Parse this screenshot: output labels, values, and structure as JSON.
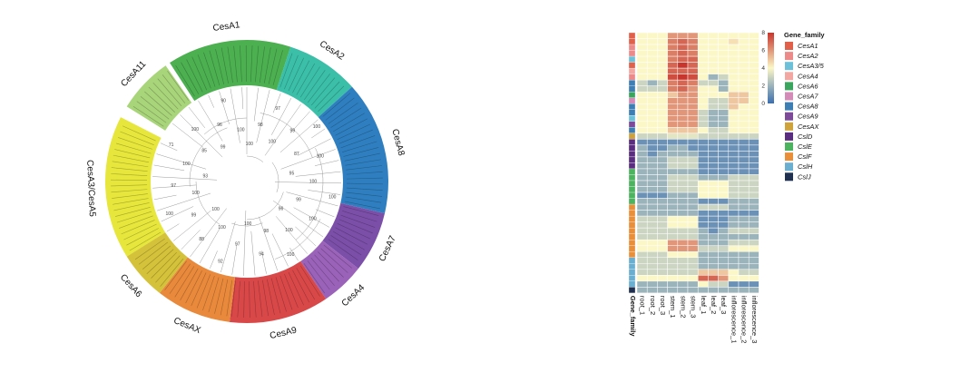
{
  "colors": {
    "CesA1": "#4caf50",
    "CesA2": "#3bbfa8",
    "CesA8": "#2f7fc0",
    "CesA7": "#7b4fa8",
    "CesA4": "#9a62b8",
    "CesA9": "#d94848",
    "CesAX": "#e8893c",
    "CesA6": "#d4c23a",
    "CesA3/CesA5": "#e6e63c",
    "CesA11": "#a8d47a"
  },
  "chart_data": [
    {
      "type": "phylogenetic-tree",
      "clades": [
        {
          "name": "CesA1",
          "start_deg": 327,
          "end_deg": 18
        },
        {
          "name": "CesA2",
          "start_deg": 18,
          "end_deg": 48
        },
        {
          "name": "CesA8",
          "start_deg": 48,
          "end_deg": 103
        },
        {
          "name": "CesA7",
          "start_deg": 103,
          "end_deg": 128
        },
        {
          "name": "CesA4",
          "start_deg": 128,
          "end_deg": 146
        },
        {
          "name": "CesA9",
          "start_deg": 146,
          "end_deg": 187
        },
        {
          "name": "CesAX",
          "start_deg": 187,
          "end_deg": 218
        },
        {
          "name": "CesA6",
          "start_deg": 218,
          "end_deg": 238
        },
        {
          "name": "CesA3/CesA5",
          "start_deg": 238,
          "end_deg": 297
        },
        {
          "name": "CesA11",
          "start_deg": 302,
          "end_deg": 325
        }
      ],
      "label_clades": [
        "CesA1",
        "CesA2",
        "CesA8",
        "CesA7",
        "CesA4",
        "CesA9",
        "CesAX",
        "CesA6",
        "CesA3/CesA5",
        "CesA11"
      ],
      "bootstrap_values": [
        "100",
        "98",
        "97",
        "100",
        "99",
        "100",
        "87",
        "100",
        "95",
        "100",
        "100",
        "99",
        "100",
        "96",
        "100",
        "100",
        "98",
        "94",
        "100",
        "97",
        "92",
        "100",
        "88",
        "100",
        "99",
        "100",
        "100",
        "97",
        "93",
        "100",
        "71",
        "85",
        "100",
        "99",
        "96",
        "90",
        "100"
      ]
    },
    {
      "type": "heatmap",
      "columns": [
        "root_1",
        "root_2",
        "root_3",
        "stem_1",
        "stem_2",
        "stem_3",
        "leaf_1",
        "leaf_2",
        "leaf_3",
        "inflorescence_1",
        "inflorescence_2",
        "inflorescence_3"
      ],
      "annotation_column_label": "Gene_family",
      "color_scale": {
        "min": 0,
        "max": 8,
        "ticks": [
          "8",
          "6",
          "4",
          "2",
          "0"
        ],
        "low": "#3b6fb0",
        "mid": "#fbf7c6",
        "high": "#c8352c"
      },
      "legend": {
        "title": "Gene_family",
        "entries": [
          {
            "label": "CesA1",
            "color": "#e0604a"
          },
          {
            "label": "CesA2",
            "color": "#ec8a8a"
          },
          {
            "label": "CesA3/5",
            "color": "#6cc0d8"
          },
          {
            "label": "CesA4",
            "color": "#f2a7a2"
          },
          {
            "label": "CesA6",
            "color": "#3aa55c"
          },
          {
            "label": "CesA7",
            "color": "#d48bb8"
          },
          {
            "label": "CesA8",
            "color": "#3d7fb5"
          },
          {
            "label": "CesA9",
            "color": "#7d4a9a"
          },
          {
            "label": "CesAX",
            "color": "#cfa23a"
          },
          {
            "label": "CslD",
            "color": "#5a2d80"
          },
          {
            "label": "CslE",
            "color": "#4cb35e"
          },
          {
            "label": "CslF",
            "color": "#e98f3a"
          },
          {
            "label": "CslH",
            "color": "#6aaed0"
          },
          {
            "label": "CslJ",
            "color": "#1f3050"
          }
        ]
      },
      "row_families": [
        "CesA1",
        "CesA1",
        "CesA2",
        "CesA2",
        "CesA3/5",
        "CesA1",
        "CesA4",
        "CesA2",
        "CesA8",
        "CesA8",
        "CesA6",
        "CesA7",
        "CesA8",
        "CesA8",
        "CesA3/5",
        "CesA9",
        "CesA8",
        "CesAX",
        "CslD",
        "CslD",
        "CslD",
        "CslD",
        "CslD",
        "CslE",
        "CslE",
        "CslE",
        "CslE",
        "CslE",
        "CslE",
        "CslF",
        "CslF",
        "CslF",
        "CslF",
        "CslF",
        "CslF",
        "CslF",
        "CslF",
        "CslF",
        "CslH",
        "CslH",
        "CslH",
        "CslH",
        "CslH",
        "CslJ"
      ],
      "values": [
        [
          4,
          4,
          4,
          6,
          6,
          6,
          4,
          4,
          4,
          4,
          4,
          4
        ],
        [
          4,
          4,
          4,
          6.5,
          7,
          6.5,
          4,
          4,
          4,
          4.5,
          4,
          4
        ],
        [
          4,
          4,
          4,
          6.5,
          7,
          6.5,
          4,
          4,
          4,
          4,
          4,
          4
        ],
        [
          4,
          4,
          4,
          6.5,
          7,
          6.5,
          4,
          4,
          4,
          4,
          4,
          4
        ],
        [
          4,
          4,
          4,
          6.5,
          7,
          7,
          4,
          4,
          4,
          4,
          4,
          4
        ],
        [
          4,
          4,
          4,
          7,
          8,
          7,
          4,
          4,
          4,
          4,
          4,
          4
        ],
        [
          4,
          4,
          4,
          7,
          7,
          7,
          4,
          4,
          4,
          4,
          4,
          4
        ],
        [
          4,
          4,
          4,
          7.5,
          8,
          7.5,
          4,
          2,
          3,
          4,
          4,
          4
        ],
        [
          3,
          2,
          3,
          6.5,
          7,
          6.5,
          3,
          3,
          2,
          4,
          4,
          4
        ],
        [
          3,
          3,
          3,
          6.5,
          7,
          6,
          4,
          4,
          2,
          4,
          4,
          4
        ],
        [
          4,
          4,
          4,
          5,
          6,
          6,
          4,
          4,
          4,
          5,
          5,
          4
        ],
        [
          4,
          4,
          4,
          6,
          6,
          6,
          4,
          3,
          3,
          5,
          5,
          4
        ],
        [
          4,
          4,
          4,
          6,
          6,
          6,
          4,
          3,
          3,
          5,
          4,
          4
        ],
        [
          4,
          4,
          4,
          6,
          6,
          6,
          3,
          2,
          2,
          4,
          4,
          4
        ],
        [
          4,
          4,
          4,
          6,
          6,
          6,
          3,
          2,
          2,
          4,
          4,
          4
        ],
        [
          4,
          4,
          4,
          6,
          6,
          6,
          3,
          2,
          2,
          4,
          4,
          4
        ],
        [
          4,
          4,
          4,
          5,
          5,
          5,
          4,
          3,
          3,
          4,
          4,
          4
        ],
        [
          3,
          3,
          3,
          3.5,
          3.5,
          3.5,
          3,
          3,
          3,
          3,
          3,
          3
        ],
        [
          1,
          1,
          1,
          1,
          1,
          1,
          1,
          1,
          1,
          1,
          1,
          1
        ],
        [
          2,
          1,
          1,
          2,
          2,
          1,
          1,
          1,
          1,
          1,
          1,
          1
        ],
        [
          2,
          1,
          2,
          2,
          2,
          2,
          1,
          1,
          1,
          1,
          1,
          1
        ],
        [
          2,
          2,
          2,
          3,
          3,
          3,
          1,
          1,
          1,
          1,
          1,
          1
        ],
        [
          2,
          2,
          2,
          3,
          3,
          3,
          1,
          1,
          1,
          1,
          1,
          1
        ],
        [
          2,
          2,
          2,
          2,
          2,
          2,
          1,
          1,
          1,
          1,
          1,
          1
        ],
        [
          2,
          2,
          2,
          3,
          3,
          3,
          2,
          2,
          2,
          3,
          3,
          3
        ],
        [
          2,
          2,
          2,
          3,
          3,
          3,
          4,
          4,
          4,
          3,
          3,
          3
        ],
        [
          2,
          2,
          2,
          3,
          3,
          3,
          4,
          4,
          4,
          3,
          3,
          3
        ],
        [
          1,
          1,
          1,
          2,
          2,
          2,
          4,
          4,
          4,
          3,
          3,
          3
        ],
        [
          2,
          2,
          2,
          2,
          2,
          2,
          1,
          1,
          1,
          2,
          2,
          2
        ],
        [
          2,
          2,
          2,
          2,
          2,
          2,
          3,
          3,
          3,
          2,
          2,
          2
        ],
        [
          2,
          2,
          2,
          2,
          2,
          2,
          1,
          1,
          1,
          1,
          1,
          1
        ],
        [
          3,
          3,
          3,
          4,
          4,
          4,
          1,
          1,
          1,
          2,
          2,
          2
        ],
        [
          3,
          3,
          3,
          4,
          4,
          4,
          1,
          1,
          1,
          2,
          2,
          2
        ],
        [
          3,
          3,
          3,
          3,
          3,
          3,
          2,
          1,
          2,
          3,
          3,
          3
        ],
        [
          3,
          3,
          3,
          3,
          3,
          3,
          2,
          2,
          2,
          2,
          2,
          2
        ],
        [
          4,
          4,
          4,
          6,
          6,
          6,
          2,
          2,
          2,
          3,
          3,
          3
        ],
        [
          4,
          4,
          4,
          6,
          6,
          6,
          3,
          3,
          3,
          4,
          4,
          4
        ],
        [
          3,
          3,
          3,
          4,
          4,
          4,
          2,
          2,
          2,
          2,
          2,
          2
        ],
        [
          3,
          3,
          3,
          3,
          3,
          3,
          2,
          2,
          2,
          2,
          2,
          2
        ],
        [
          3,
          3,
          3,
          3,
          3,
          3,
          2,
          2,
          2,
          2,
          2,
          2
        ],
        [
          3,
          3,
          3,
          3,
          3,
          3,
          5,
          5,
          5,
          4,
          3,
          3
        ],
        [
          4,
          4,
          4,
          4,
          4,
          4,
          7,
          7,
          6,
          4,
          4,
          4
        ],
        [
          2,
          2,
          2,
          2,
          2,
          2,
          4,
          3,
          3,
          1,
          1,
          1
        ],
        [
          2,
          2,
          2,
          2,
          2,
          2,
          2,
          2,
          2,
          2,
          2,
          2
        ]
      ]
    }
  ]
}
